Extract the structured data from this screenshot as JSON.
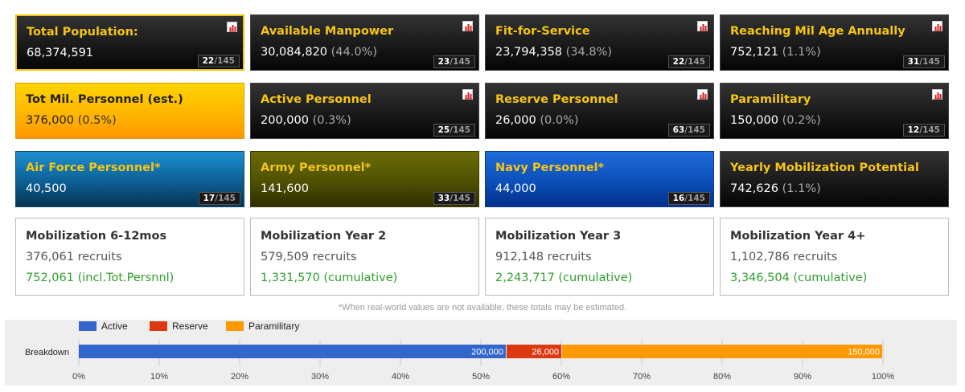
{
  "cards_row1": [
    {
      "title": "Total Population:",
      "value": "68,374,591",
      "pct": "",
      "rank": "22",
      "total": "/145",
      "style": "dark",
      "selected": true
    },
    {
      "title": "Available Manpower",
      "value": "30,084,820",
      "pct": "(44.0%)",
      "rank": "23",
      "total": "/145",
      "style": "dark"
    },
    {
      "title": "Fit-for-Service",
      "value": "23,794,358",
      "pct": "(34.8%)",
      "rank": "22",
      "total": "/145",
      "style": "dark"
    },
    {
      "title": "Reaching Mil Age Annually",
      "value": "752,121",
      "pct": "(1.1%)",
      "rank": "31",
      "total": "/145",
      "style": "dark"
    }
  ],
  "cards_row2": [
    {
      "title": "Tot Mil. Personnel (est.)",
      "value": "376,000",
      "pct": "(0.5%)",
      "style": "gold"
    },
    {
      "title": "Active Personnel",
      "value": "200,000",
      "pct": "(0.3%)",
      "rank": "25",
      "total": "/145",
      "style": "dark"
    },
    {
      "title": "Reserve Personnel",
      "value": "26,000",
      "pct": "(0.0%)",
      "rank": "63",
      "total": "/145",
      "style": "dark"
    },
    {
      "title": "Paramilitary",
      "value": "150,000",
      "pct": "(0.2%)",
      "rank": "12",
      "total": "/145",
      "style": "dark"
    }
  ],
  "cards_row3": [
    {
      "title": "Air Force Personnel*",
      "value": "40,500",
      "rank": "17",
      "total": "/145",
      "style": "air"
    },
    {
      "title": "Army Personnel*",
      "value": "141,600",
      "rank": "33",
      "total": "/145",
      "style": "army"
    },
    {
      "title": "Navy Personnel*",
      "value": "44,000",
      "rank": "16",
      "total": "/145",
      "style": "navy"
    },
    {
      "title": "Yearly Mobilization Potential",
      "value": "742,626",
      "pct": "(1.1%)",
      "style": "dark"
    }
  ],
  "mobilization": [
    {
      "title": "Mobilization 6-12mos",
      "recruits": "376,061 recruits",
      "cumulative": "752,061 (incl.Tot.Persnnl)"
    },
    {
      "title": "Mobilization Year 2",
      "recruits": "579,509 recruits",
      "cumulative": "1,331,570 (cumulative)"
    },
    {
      "title": "Mobilization Year 3",
      "recruits": "912,148 recruits",
      "cumulative": "2,243,717 (cumulative)"
    },
    {
      "title": "Mobilization Year 4+",
      "recruits": "1,102,786 recruits",
      "cumulative": "3,346,504 (cumulative)"
    }
  ],
  "footnote": "*When real-world values are not available, these totals may be estimated.",
  "chart_data": {
    "type": "bar",
    "orientation": "horizontal",
    "stacked": "percent",
    "categories": [
      "Breakdown"
    ],
    "series": [
      {
        "name": "Active",
        "values": [
          200000
        ],
        "label": "200,000",
        "color": "#3366cc"
      },
      {
        "name": "Reserve",
        "values": [
          26000
        ],
        "label": "26,000",
        "color": "#dc3912"
      },
      {
        "name": "Paramilitary",
        "values": [
          150000
        ],
        "label": "150,000",
        "color": "#ff9900"
      }
    ],
    "x_ticks": [
      "0%",
      "10%",
      "20%",
      "30%",
      "40%",
      "50%",
      "60%",
      "70%",
      "80%",
      "90%",
      "100%"
    ],
    "xlim": [
      0,
      1
    ],
    "legend": "top-left",
    "grid": true
  }
}
